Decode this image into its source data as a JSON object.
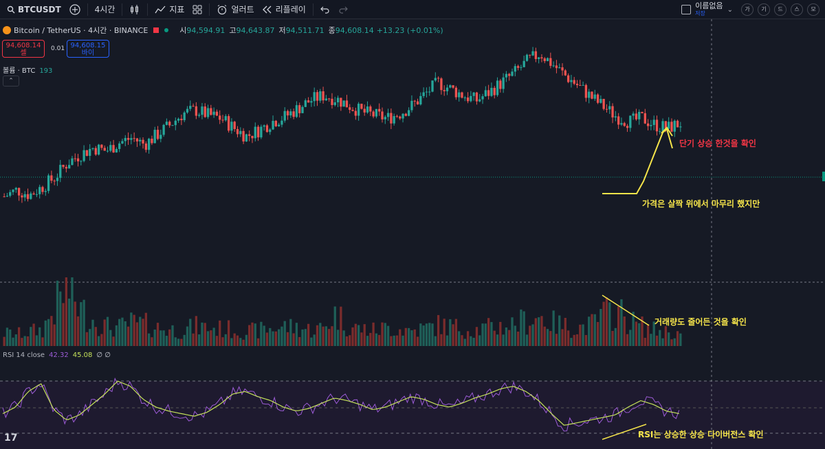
{
  "toolbar": {
    "symbol": "BTCUSDT",
    "add_icon": "plus-circle-icon",
    "interval": "4시간",
    "chart_type_icon": "candles-icon",
    "indicators_label": "지표",
    "templates_icon": "grid-icon",
    "alert_label": "얼러트",
    "replay_label": "리플레이",
    "undo_icon": "undo-icon",
    "redo_icon": "redo-icon",
    "layout_name": "이름없음",
    "layout_sub": "저장",
    "right_buttons": [
      "가",
      "기",
      "드",
      "스",
      "모"
    ]
  },
  "legend": {
    "title": "Bitcoin / TetherUS · 4시간 · BINANCE",
    "open_label": "시",
    "open": "94,594.91",
    "high_label": "고",
    "high": "94,643.87",
    "low_label": "저",
    "low": "94,511.71",
    "close_label": "종",
    "close": "94,608.14",
    "change": "+13.23 (+0.01%)"
  },
  "trade": {
    "sell_price": "94,608.14",
    "sell_label": "셀",
    "spread": "0.01",
    "buy_price": "94,608.15",
    "buy_label": "바이"
  },
  "volume": {
    "label": "볼륨 · BTC",
    "value": "193"
  },
  "rsi": {
    "label": "RSI 14 close",
    "value1": "42.32",
    "value2": "45.08",
    "extra": "∅ ∅"
  },
  "annotations": {
    "short_rise": "단기 상승 한것을 확인",
    "price_note": "가격은 살짝 위에서 마무리 했지만",
    "volume_note": "거래량도 줄어든 것을 확인",
    "rsi_note": "RSI는 상승한 상승 다이버전스 확인"
  },
  "colors": {
    "up": "#26a69a",
    "down": "#ef5350",
    "annotation": "#f5e44a",
    "rsi_line": "#9c5bd6",
    "rsi_ma": "#c5e25a"
  },
  "chart_data": {
    "type": "candlestick",
    "price_trend": [
      92.0,
      92.4,
      92.1,
      92.6,
      93.2,
      94.1,
      94.6,
      95.0,
      94.8,
      95.3,
      95.6,
      95.2,
      95.8,
      96.4,
      97.1,
      97.3,
      97.0,
      96.8,
      96.2,
      95.7,
      96.1,
      96.6,
      96.9,
      97.4,
      97.9,
      98.2,
      98.0,
      97.6,
      97.2,
      97.0,
      96.8,
      97.1,
      97.6,
      98.3,
      99.0,
      98.6,
      98.2,
      97.9,
      98.4,
      99.0,
      99.6,
      100.3,
      100.8,
      100.1,
      99.4,
      98.8,
      98.1,
      97.5,
      96.9,
      96.6,
      96.8,
      96.4,
      96.2,
      96.5
    ],
    "volume_trend": [
      20,
      18,
      22,
      25,
      60,
      90,
      55,
      40,
      30,
      28,
      35,
      33,
      28,
      25,
      24,
      30,
      28,
      26,
      25,
      22,
      24,
      27,
      30,
      28,
      25,
      27,
      50,
      30,
      26,
      24,
      28,
      26,
      24,
      27,
      32,
      30,
      26,
      25,
      28,
      30,
      34,
      40,
      45,
      35,
      30,
      28,
      32,
      48,
      55,
      38,
      30,
      24,
      22,
      18
    ],
    "rsi_trend": [
      45,
      50,
      62,
      68,
      48,
      40,
      44,
      52,
      60,
      70,
      66,
      56,
      50,
      47,
      45,
      43,
      46,
      52,
      60,
      62,
      58,
      55,
      50,
      47,
      49,
      53,
      57,
      55,
      52,
      48,
      50,
      54,
      58,
      56,
      52,
      50,
      53,
      57,
      60,
      64,
      66,
      62,
      55,
      45,
      36,
      38,
      40,
      42,
      44,
      50,
      55,
      52,
      47,
      45
    ]
  }
}
